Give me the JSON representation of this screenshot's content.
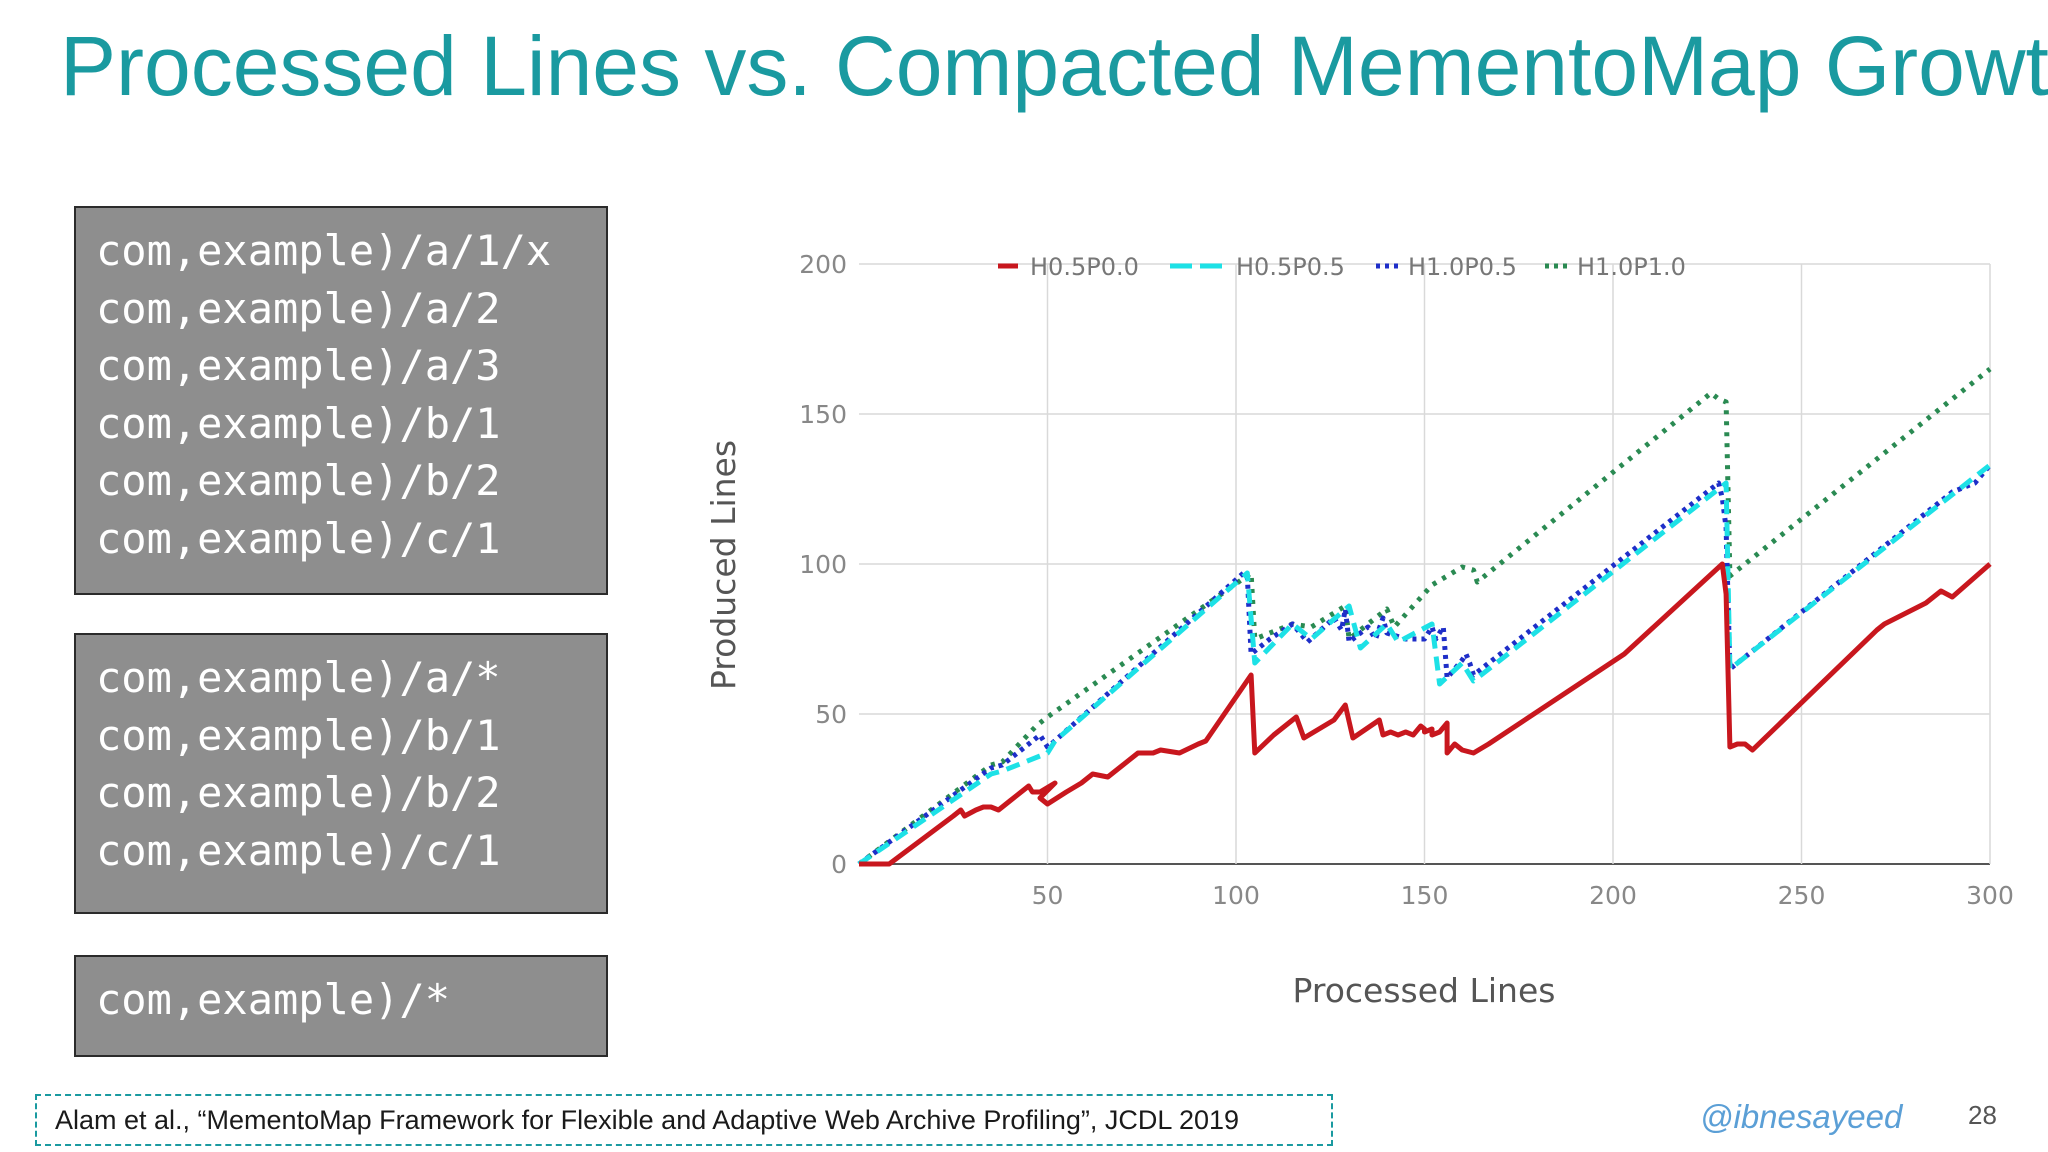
{
  "slide": {
    "title": "Processed Lines vs. Compacted MementoMap Growth",
    "citation": "Alam et al., “MementoMap Framework for Flexible and Adaptive Web Archive Profiling”, JCDL 2019",
    "handle": "@ibnesayeed",
    "page_number": "28"
  },
  "code_boxes": [
    {
      "lines": [
        "com,example)/a/1/x",
        "com,example)/a/2",
        "com,example)/a/3",
        "com,example)/b/1",
        "com,example)/b/2",
        "com,example)/c/1"
      ]
    },
    {
      "lines": [
        "com,example)/a/*",
        "com,example)/b/1",
        "com,example)/b/2",
        "com,example)/c/1"
      ]
    },
    {
      "lines": [
        "com,example)/*"
      ]
    }
  ],
  "colors": {
    "title": "#1a9aa0",
    "code_box_bg": "#8e8e8e",
    "citation_border": "#1a9aa0",
    "handle": "#5b9fd6"
  },
  "chart_data": {
    "type": "line",
    "xlabel": "Processed Lines",
    "ylabel": "Produced Lines",
    "xlim": [
      0,
      300
    ],
    "ylim": [
      0,
      200
    ],
    "x_ticks": [
      50,
      100,
      150,
      200,
      250,
      300
    ],
    "y_ticks": [
      0,
      50,
      100,
      150,
      200
    ],
    "grid": true,
    "legend_position": "top",
    "series": [
      {
        "name": "H0.5P0.0",
        "color": "#c8171e",
        "dash": "solid",
        "points": [
          [
            0,
            0
          ],
          [
            8,
            0
          ],
          [
            25,
            16
          ],
          [
            27,
            18
          ],
          [
            28,
            16
          ],
          [
            31,
            18
          ],
          [
            33,
            19
          ],
          [
            35,
            19
          ],
          [
            37,
            18
          ],
          [
            38,
            19
          ],
          [
            40,
            21
          ],
          [
            45,
            26
          ],
          [
            46,
            24
          ],
          [
            48,
            24
          ],
          [
            52,
            27
          ],
          [
            48,
            22
          ],
          [
            50,
            20
          ],
          [
            55,
            24
          ],
          [
            59,
            27
          ],
          [
            62,
            30
          ],
          [
            66,
            29
          ],
          [
            70,
            33
          ],
          [
            74,
            37
          ],
          [
            78,
            37
          ],
          [
            80,
            38
          ],
          [
            85,
            37
          ],
          [
            90,
            40
          ],
          [
            92,
            41
          ],
          [
            104,
            63
          ],
          [
            105,
            37
          ],
          [
            110,
            43
          ],
          [
            116,
            49
          ],
          [
            118,
            42
          ],
          [
            126,
            48
          ],
          [
            129,
            53
          ],
          [
            131,
            42
          ],
          [
            138,
            48
          ],
          [
            139,
            43
          ],
          [
            141,
            44
          ],
          [
            143,
            43
          ],
          [
            145,
            44
          ],
          [
            147,
            43
          ],
          [
            149,
            46
          ],
          [
            150,
            45
          ],
          [
            150,
            44
          ],
          [
            152,
            45
          ],
          [
            152,
            43
          ],
          [
            154,
            44
          ],
          [
            156,
            47
          ],
          [
            156,
            37
          ],
          [
            158,
            40
          ],
          [
            160,
            38
          ],
          [
            163,
            37
          ],
          [
            167,
            40
          ],
          [
            203,
            70
          ],
          [
            229,
            100
          ],
          [
            230,
            90
          ],
          [
            231,
            39
          ],
          [
            233,
            40
          ],
          [
            235,
            40
          ],
          [
            237,
            38
          ],
          [
            270,
            78
          ],
          [
            272,
            80
          ],
          [
            283,
            87
          ],
          [
            287,
            91
          ],
          [
            290,
            89
          ],
          [
            300,
            100
          ]
        ]
      },
      {
        "name": "H0.5P0.5",
        "color": "#1de1e6",
        "dash": "dashed",
        "points": [
          [
            0,
            0
          ],
          [
            35,
            30
          ],
          [
            38,
            31
          ],
          [
            50,
            37
          ],
          [
            52,
            41
          ],
          [
            103,
            97
          ],
          [
            105,
            67
          ],
          [
            115,
            80
          ],
          [
            120,
            75
          ],
          [
            130,
            86
          ],
          [
            133,
            72
          ],
          [
            140,
            80
          ],
          [
            143,
            74
          ],
          [
            152,
            80
          ],
          [
            154,
            60
          ],
          [
            160,
            67
          ],
          [
            163,
            61
          ],
          [
            230,
            127
          ],
          [
            231,
            65
          ],
          [
            300,
            133
          ]
        ]
      },
      {
        "name": "H1.0P0.5",
        "color": "#1e2ec8",
        "dash": "dotted",
        "points": [
          [
            0,
            0
          ],
          [
            35,
            32
          ],
          [
            38,
            33
          ],
          [
            48,
            43
          ],
          [
            50,
            39
          ],
          [
            51,
            40
          ],
          [
            102,
            97
          ],
          [
            103,
            96
          ],
          [
            104,
            70
          ],
          [
            109,
            75
          ],
          [
            115,
            80
          ],
          [
            119,
            74
          ],
          [
            126,
            82
          ],
          [
            128,
            78
          ],
          [
            129,
            85
          ],
          [
            130,
            74
          ],
          [
            135,
            79
          ],
          [
            137,
            75
          ],
          [
            139,
            82
          ],
          [
            140,
            77
          ],
          [
            145,
            75
          ],
          [
            150,
            75
          ],
          [
            152,
            79
          ],
          [
            153,
            75
          ],
          [
            155,
            79
          ],
          [
            156,
            62
          ],
          [
            160,
            68
          ],
          [
            161,
            70
          ],
          [
            162,
            67
          ],
          [
            163,
            63
          ],
          [
            228,
            127
          ],
          [
            229,
            122
          ],
          [
            230,
            112
          ],
          [
            231,
            65
          ],
          [
            290,
            124
          ],
          [
            296,
            127
          ],
          [
            300,
            133
          ]
        ]
      },
      {
        "name": "H1.0P1.0",
        "color": "#2a8a52",
        "dash": "dotted",
        "points": [
          [
            0,
            0
          ],
          [
            35,
            33
          ],
          [
            38,
            34
          ],
          [
            47,
            46
          ],
          [
            50,
            49
          ],
          [
            104,
            97
          ],
          [
            105,
            75
          ],
          [
            115,
            80
          ],
          [
            120,
            79
          ],
          [
            129,
            86
          ],
          [
            130,
            75
          ],
          [
            137,
            82
          ],
          [
            140,
            85
          ],
          [
            142,
            79
          ],
          [
            152,
            93
          ],
          [
            160,
            99
          ],
          [
            163,
            98
          ],
          [
            164,
            94
          ],
          [
            226,
            157
          ],
          [
            228,
            155
          ],
          [
            230,
            154
          ],
          [
            231,
            96
          ],
          [
            300,
            165
          ]
        ]
      }
    ]
  }
}
